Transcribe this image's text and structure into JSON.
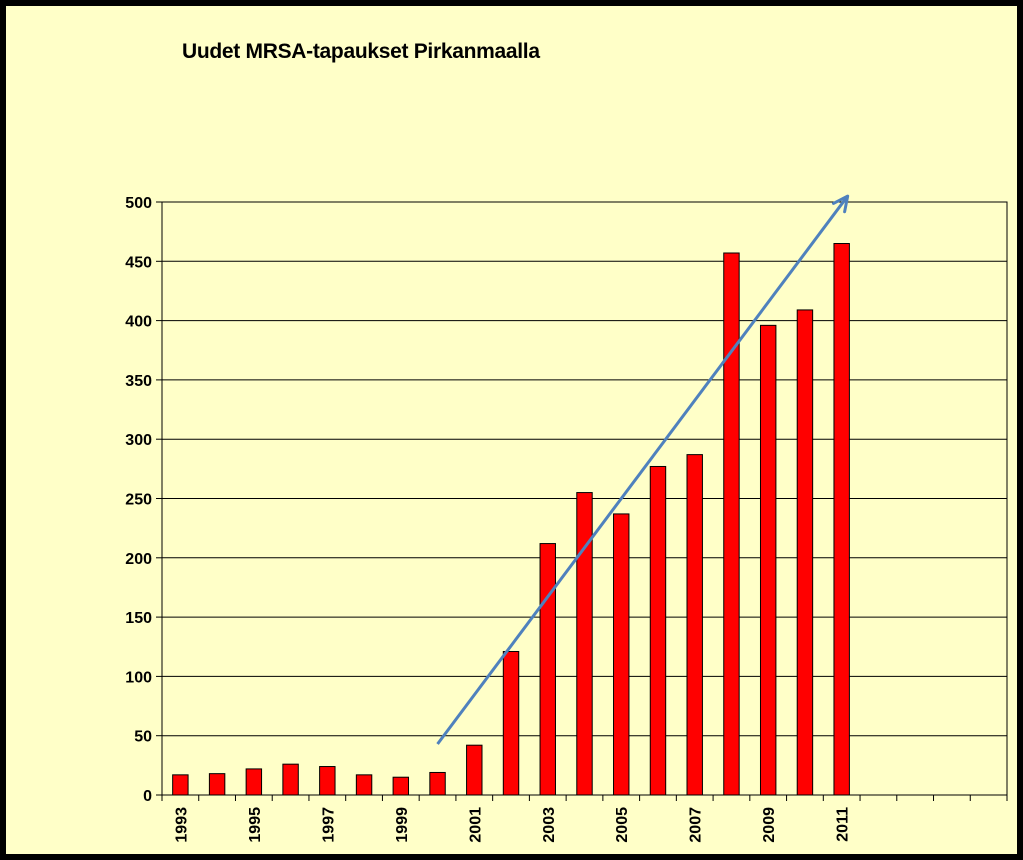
{
  "title": "Uudet MRSA-tapaukset Pirkanmaalla",
  "chart_data": {
    "type": "bar",
    "title": "Uudet MRSA-tapaukset Pirkanmaalla",
    "xlabel": "",
    "ylabel": "",
    "ylim": [
      0,
      500
    ],
    "yticks": [
      0,
      50,
      100,
      150,
      200,
      250,
      300,
      350,
      400,
      450,
      500
    ],
    "categories": [
      "1993",
      "1994",
      "1995",
      "1996",
      "1997",
      "1998",
      "1999",
      "2000",
      "2001",
      "2002",
      "2003",
      "2004",
      "2005",
      "2006",
      "2007",
      "2008",
      "2009",
      "2010",
      "2011",
      "2012",
      "2013",
      "2014",
      "2015"
    ],
    "xtick_labels": [
      "1993",
      "",
      "1995",
      "",
      "1997",
      "",
      "1999",
      "",
      "2001",
      "",
      "2003",
      "",
      "2005",
      "",
      "2007",
      "",
      "2009",
      "",
      "2011",
      "",
      "",
      "",
      ""
    ],
    "values": [
      17,
      18,
      22,
      26,
      24,
      17,
      15,
      19,
      42,
      121,
      212,
      255,
      237,
      277,
      287,
      457,
      396,
      409,
      465,
      null,
      null,
      null,
      null
    ],
    "bar_color": "#ff0000",
    "grid": true,
    "legend": "none",
    "trend_arrow": {
      "from": [
        "2000",
        43
      ],
      "to": [
        "2011",
        505
      ],
      "color": "#4f81bd"
    }
  }
}
